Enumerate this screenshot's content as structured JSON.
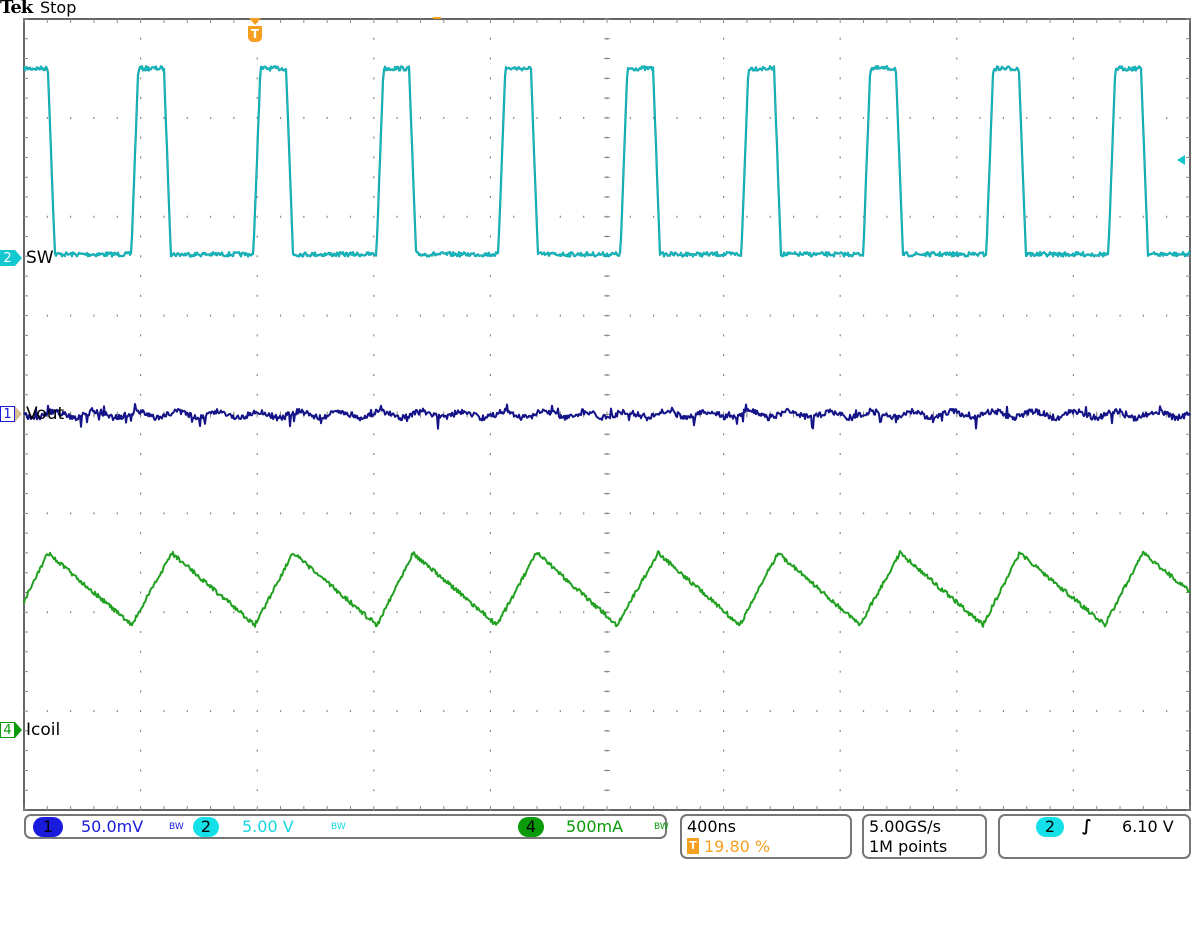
{
  "header": {
    "brand": "Tek",
    "status": "Stop"
  },
  "channels": [
    {
      "id": "2",
      "label": "SW",
      "color": "#14c8d0",
      "trace_color": "#139a9e",
      "scale": "5.00 V",
      "bw_icon": "bw-limit-icon"
    },
    {
      "id": "1",
      "label": "Vout",
      "color": "#1a1adc",
      "trace_color": "#141488",
      "scale": "50.0mV",
      "bw_icon": "bw-limit-icon"
    },
    {
      "id": "4",
      "label": "Icoil",
      "color": "#0a9a0a",
      "trace_color": "#22a022",
      "scale": "500mA",
      "bw_icon": "bw-limit-icon"
    }
  ],
  "bw_text": "BW",
  "timebase": {
    "scale": "400ns",
    "trigger_position": "19.80 %",
    "trigger_icon": "T"
  },
  "acquisition": {
    "sample_rate": "5.00GS/s",
    "record_length": "1M points"
  },
  "trigger": {
    "source": "2",
    "slope_icon": "rising-edge-icon",
    "slope_glyph": "∫",
    "level": "6.10 V"
  },
  "colors": {
    "trigger": "#f5a020",
    "grid": "#777777"
  },
  "chart_data": {
    "type": "line",
    "x_unit": "ns",
    "x_range": [
      -792,
      3208
    ],
    "x_per_div": 400,
    "x_divisions": 10,
    "y_divisions": 8,
    "grid": true,
    "series": [
      {
        "name": "SW",
        "channel": "2",
        "unit": "V",
        "per_div": 5,
        "position_div": 1.58,
        "points": [
          [
            -792,
            9.6
          ],
          [
            -710,
            9.6
          ],
          [
            -686,
            0.2
          ],
          [
            -424,
            0.2
          ],
          [
            -400,
            9.6
          ],
          [
            -312,
            9.6
          ],
          [
            -288,
            0.2
          ],
          [
            -5,
            0.2
          ],
          [
            19,
            9.6
          ],
          [
            107,
            9.6
          ],
          [
            131,
            0.2
          ],
          [
            417,
            0.2
          ],
          [
            441,
            9.6
          ],
          [
            529,
            9.6
          ],
          [
            553,
            0.2
          ],
          [
            835,
            0.2
          ],
          [
            859,
            9.6
          ],
          [
            947,
            9.6
          ],
          [
            971,
            0.2
          ],
          [
            1254,
            0.2
          ],
          [
            1278,
            9.6
          ],
          [
            1366,
            9.6
          ],
          [
            1390,
            0.2
          ],
          [
            1669,
            0.2
          ],
          [
            1693,
            9.6
          ],
          [
            1781,
            9.6
          ],
          [
            1805,
            0.2
          ],
          [
            2087,
            0.2
          ],
          [
            2111,
            9.6
          ],
          [
            2199,
            9.6
          ],
          [
            2223,
            0.2
          ],
          [
            2509,
            0.2
          ],
          [
            2533,
            9.6
          ],
          [
            2621,
            9.6
          ],
          [
            2645,
            0.2
          ],
          [
            2928,
            0.2
          ],
          [
            2952,
            9.6
          ],
          [
            3040,
            9.6
          ],
          [
            3064,
            0.2
          ],
          [
            3208,
            0.2
          ]
        ]
      },
      {
        "name": "Vout",
        "channel": "1",
        "unit": "mV",
        "per_div": 50,
        "position_div": 0,
        "points": [
          [
            -792,
            0
          ],
          [
            3208,
            0
          ]
        ]
      },
      {
        "name": "Icoil",
        "channel": "4",
        "unit": "mA",
        "per_div": 500,
        "position_div": -3.19,
        "points": [
          [
            -792,
            650
          ],
          [
            -710,
            895
          ],
          [
            -422,
            530
          ],
          [
            -285,
            895
          ],
          [
            0,
            530
          ],
          [
            130,
            895
          ],
          [
            419,
            530
          ],
          [
            542,
            895
          ],
          [
            830,
            530
          ],
          [
            967,
            895
          ],
          [
            1242,
            530
          ],
          [
            1383,
            895
          ],
          [
            1664,
            530
          ],
          [
            1794,
            895
          ],
          [
            2075,
            530
          ],
          [
            2213,
            895
          ],
          [
            2497,
            530
          ],
          [
            2624,
            895
          ],
          [
            2916,
            530
          ],
          [
            3046,
            895
          ],
          [
            3208,
            700
          ]
        ]
      }
    ]
  }
}
